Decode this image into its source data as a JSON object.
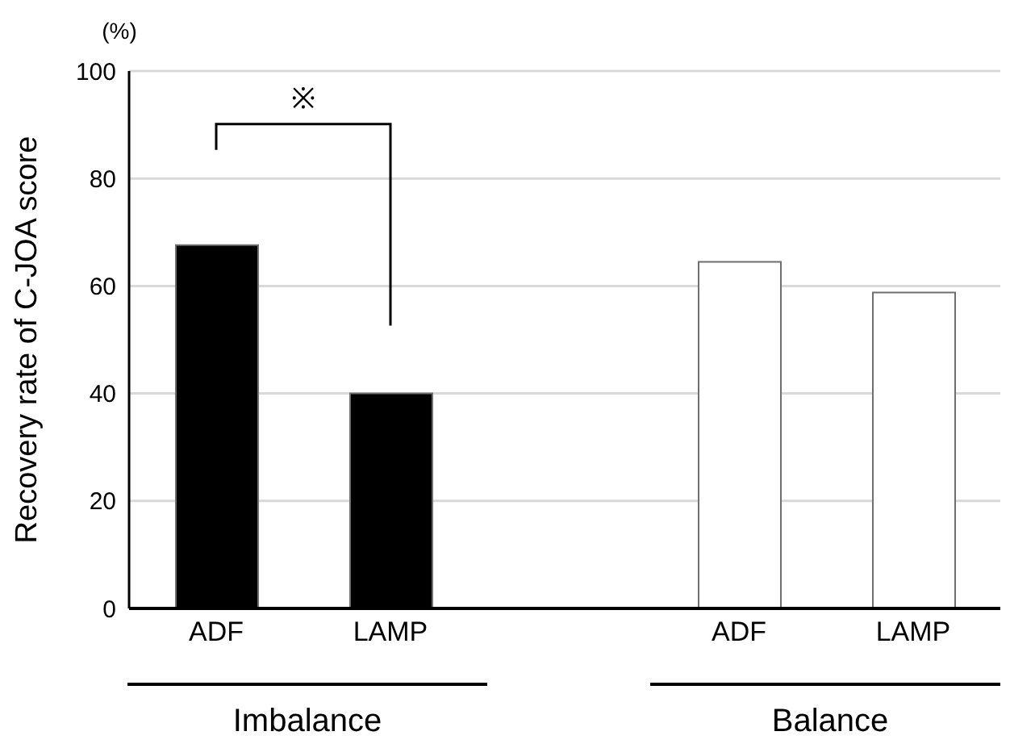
{
  "chart_data": {
    "type": "bar",
    "ylabel": "Recovery rate of C-JOA score",
    "categories": [
      "ADF",
      "LAMP",
      null,
      "ADF",
      "LAMP"
    ],
    "values": [
      67.6,
      40,
      null,
      64.5,
      58.8
    ],
    "colors": [
      "#000000",
      "#000000",
      "#ffffff",
      "#ffffff",
      "#ffffff"
    ],
    "ylim": [
      0,
      100
    ],
    "yticks": [
      0,
      20,
      40,
      60,
      80,
      100
    ],
    "grid": "y",
    "annotations": [
      "(%)",
      "※",
      "Imbalance",
      "Balance"
    ]
  }
}
